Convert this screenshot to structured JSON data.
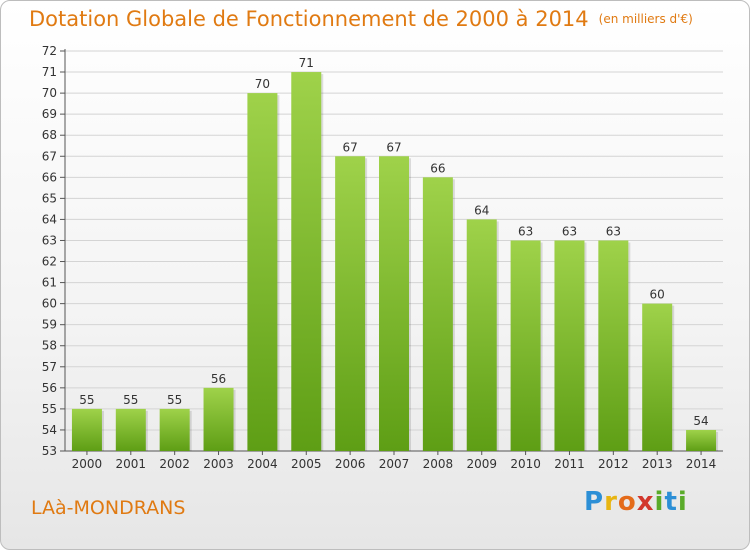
{
  "header": {
    "title": "Dotation Globale de Fonctionnement de 2000 à 2014",
    "unit": "(en milliers d'€)"
  },
  "footer": {
    "town": "LAà-MONDRANS",
    "logo": [
      "P",
      "r",
      "o",
      "x",
      "i",
      "t",
      "i"
    ]
  },
  "colors": {
    "bar_light": "#9fd24a",
    "bar_dark": "#5e9e15",
    "title": "#e07a12"
  },
  "chart_data": {
    "type": "bar",
    "title": "Dotation Globale de Fonctionnement de 2000 à 2014",
    "subtitle": "(en milliers d'€)",
    "categories": [
      "2000",
      "2001",
      "2002",
      "2003",
      "2004",
      "2005",
      "2006",
      "2007",
      "2008",
      "2009",
      "2010",
      "2011",
      "2012",
      "2013",
      "2014"
    ],
    "values": [
      55,
      55,
      55,
      56,
      70,
      71,
      67,
      67,
      66,
      64,
      63,
      63,
      63,
      60,
      54
    ],
    "ylim": [
      53,
      72
    ],
    "yticks": [
      53,
      54,
      55,
      56,
      57,
      58,
      59,
      60,
      61,
      62,
      63,
      64,
      65,
      66,
      67,
      68,
      69,
      70,
      71,
      72
    ],
    "grid": true,
    "legend": "none"
  }
}
